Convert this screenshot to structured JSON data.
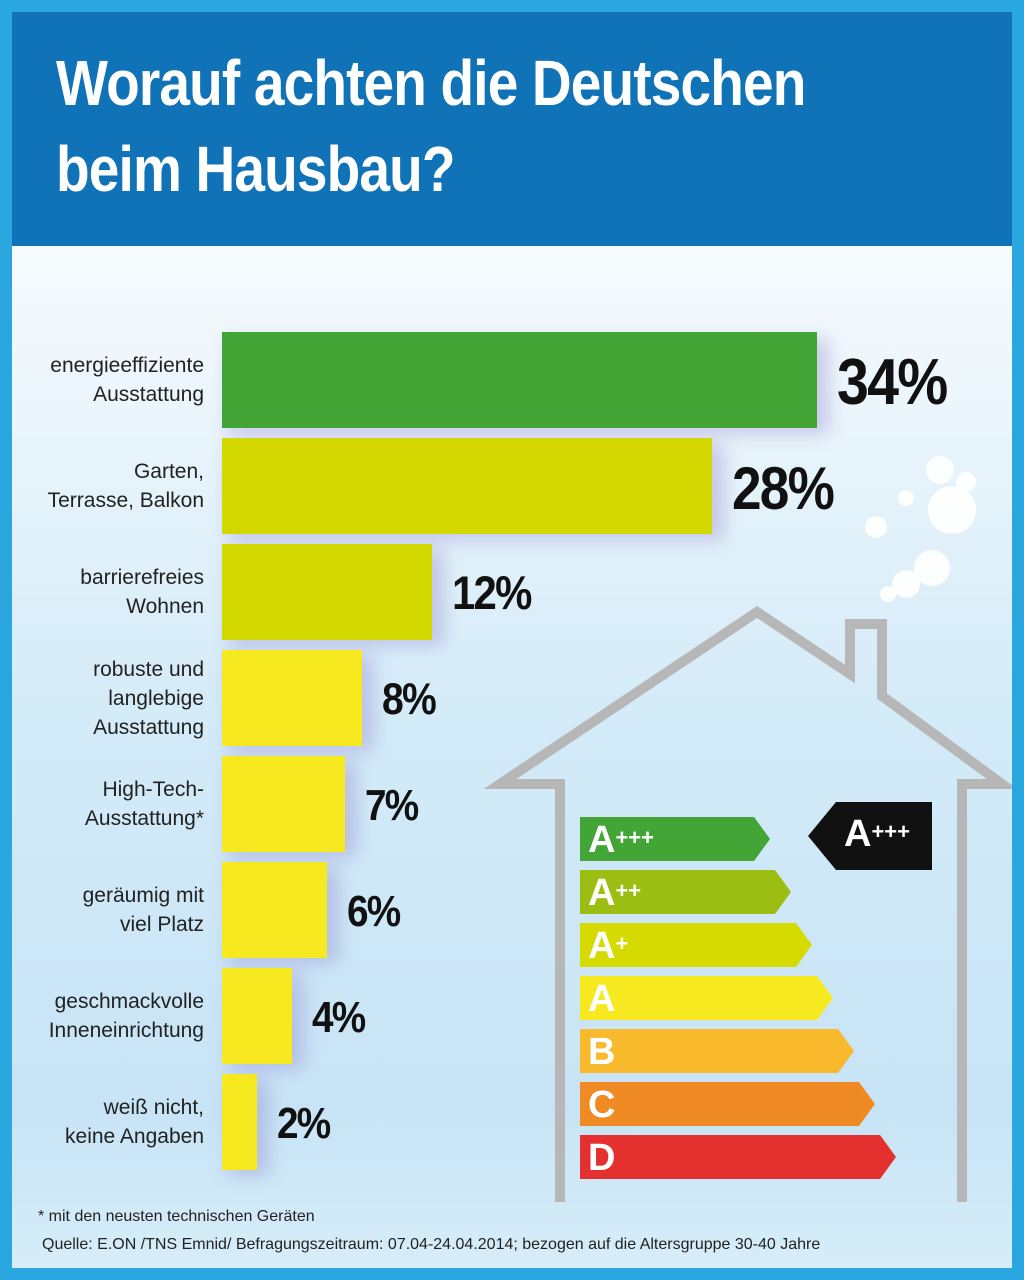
{
  "header": {
    "title_line1": "Worauf achten die Deutschen",
    "title_line2": "beim Hausbau?"
  },
  "chart_data": {
    "type": "bar",
    "orientation": "horizontal",
    "title": "Worauf achten die Deutschen beim Hausbau?",
    "categories": [
      [
        "energieeffiziente",
        "Ausstattung"
      ],
      [
        "Garten,",
        "Terrasse, Balkon"
      ],
      [
        "barrierefreies",
        "Wohnen"
      ],
      [
        "robuste und",
        "langlebige",
        "Ausstattung"
      ],
      [
        "High-Tech-",
        "Ausstattung*"
      ],
      [
        "geräumig mit",
        "viel Platz"
      ],
      [
        "geschmackvolle",
        "Inneneinrichtung"
      ],
      [
        "weiß nicht,",
        "keine Angaben"
      ]
    ],
    "values": [
      34,
      28,
      12,
      8,
      7,
      6,
      4,
      2
    ],
    "value_labels": [
      "34%",
      "28%",
      "12%",
      "8%",
      "7%",
      "6%",
      "4%",
      "2%"
    ],
    "unit": "%",
    "bar_colors": [
      "#43a536",
      "#d3d900",
      "#d3d900",
      "#f7e920",
      "#f7e920",
      "#f7e920",
      "#f7e920",
      "#f7e920"
    ]
  },
  "energy_label": {
    "classes": [
      {
        "letter": "A",
        "sup": "+++",
        "color": "#43a536"
      },
      {
        "letter": "A",
        "sup": "++",
        "color": "#9cbe12"
      },
      {
        "letter": "A",
        "sup": "+",
        "color": "#d5da00"
      },
      {
        "letter": "A",
        "sup": "",
        "color": "#f7e920"
      },
      {
        "letter": "B",
        "sup": "",
        "color": "#f9b92c"
      },
      {
        "letter": "C",
        "sup": "",
        "color": "#ef8a24"
      },
      {
        "letter": "D",
        "sup": "",
        "color": "#e4312f"
      }
    ],
    "badge": {
      "letter": "A",
      "sup": "+++",
      "color": "#111111"
    }
  },
  "footnote": "* mit den neusten technischen Geräten",
  "source": "Quelle: E.ON /TNS Emnid/ Befragungszeitraum: 07.04-24.04.2014; bezogen auf die Altersgruppe 30-40 Jahre"
}
